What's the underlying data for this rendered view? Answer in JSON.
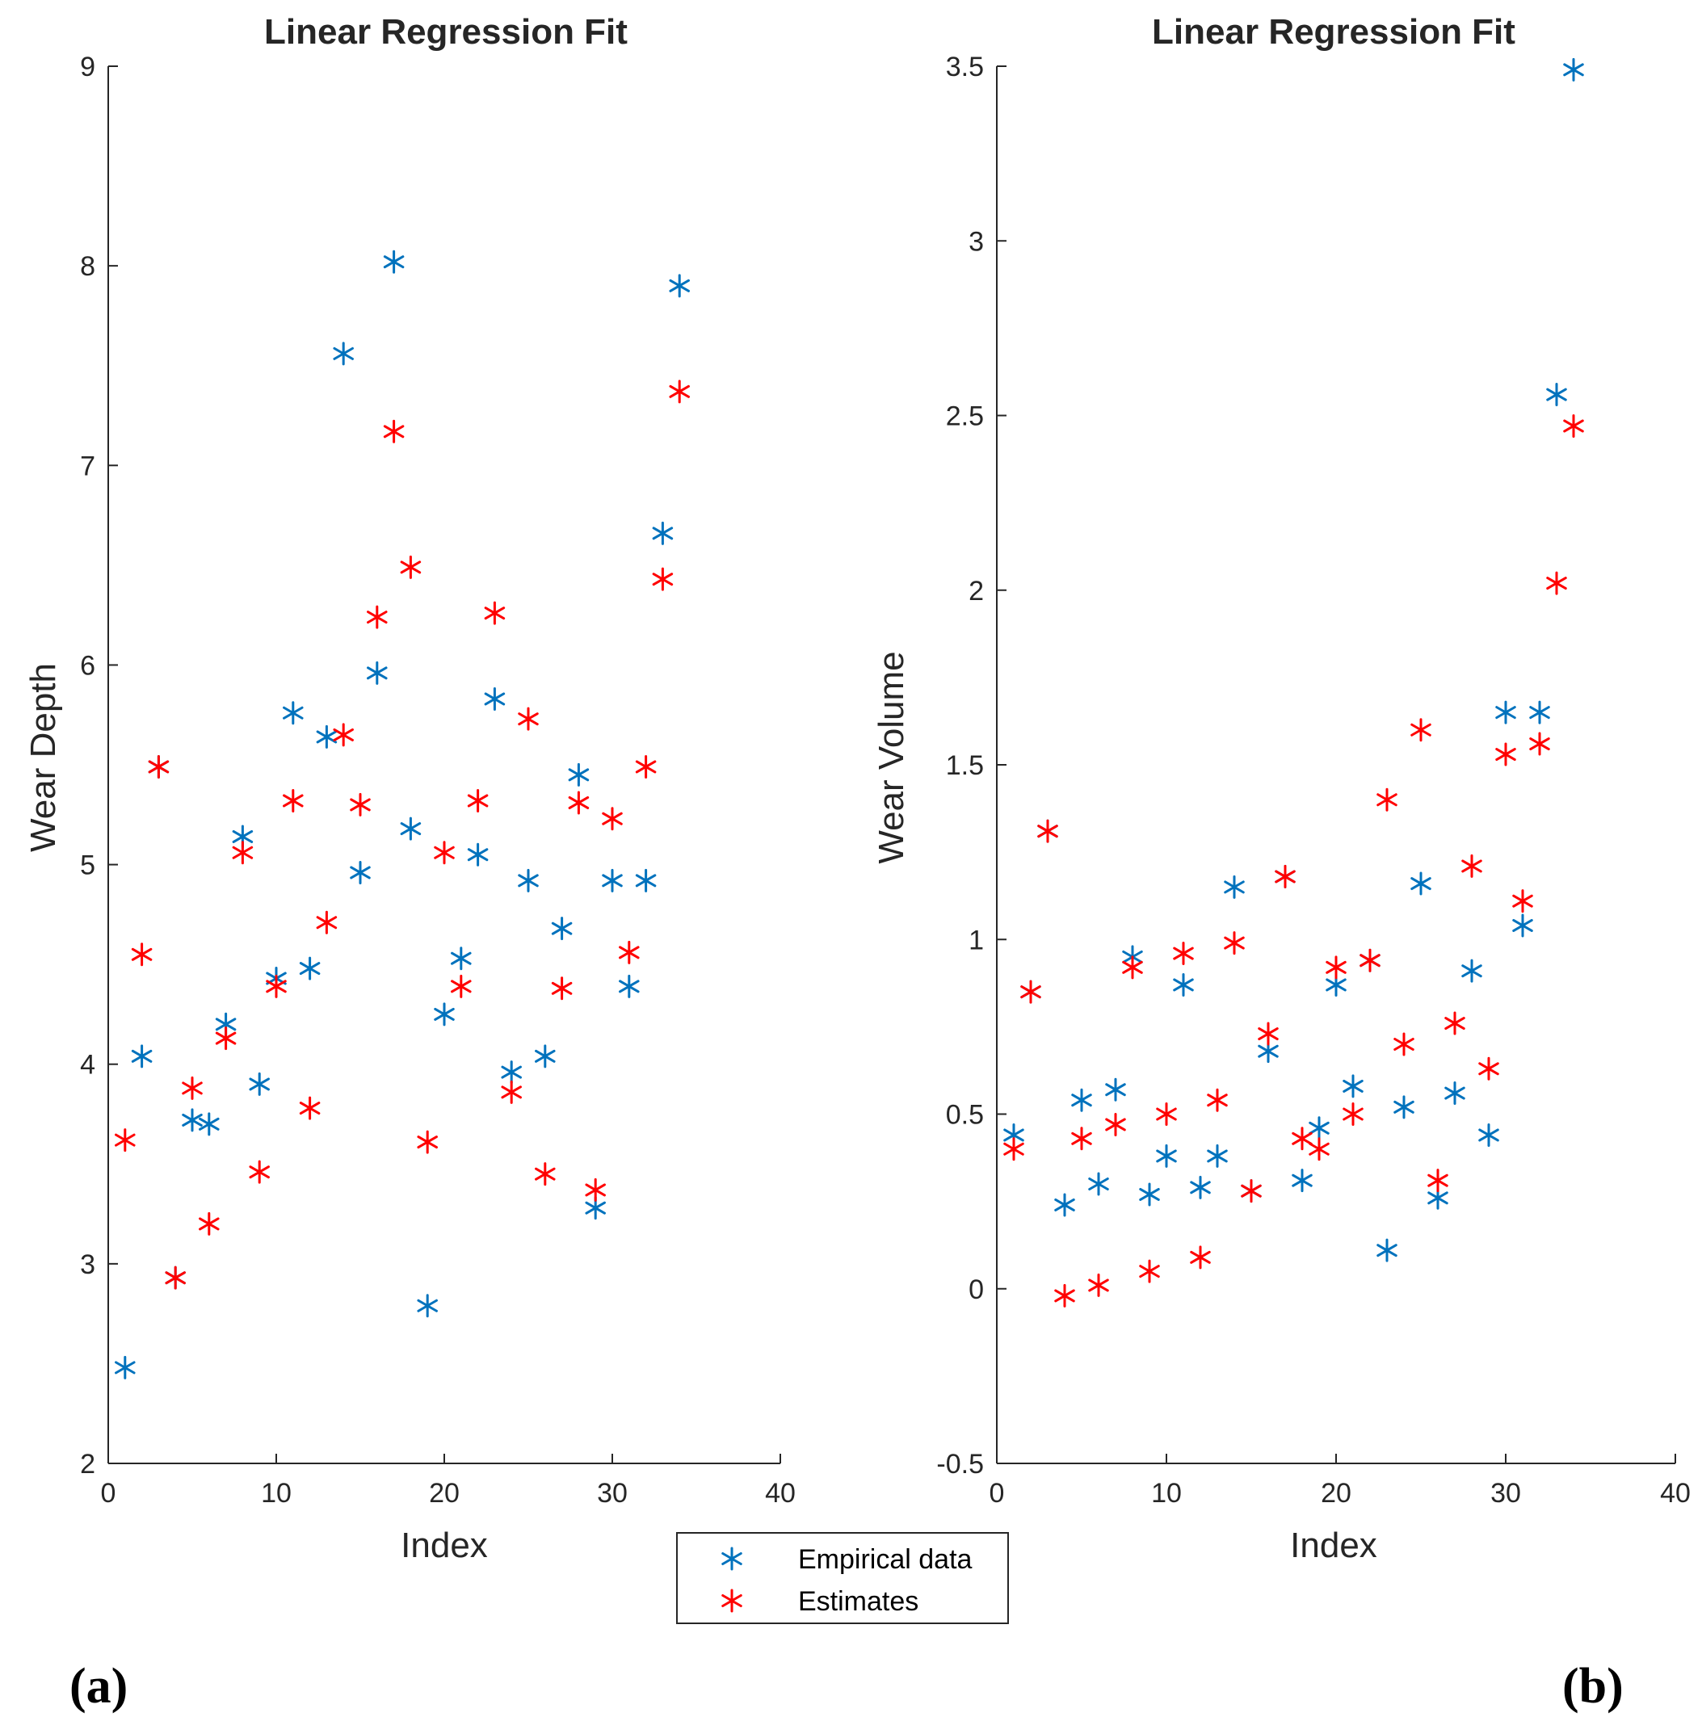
{
  "colors": {
    "empirical": "#0072bd",
    "estimates": "#ff0000",
    "axis": "#262626"
  },
  "legend": {
    "empirical_label": "Empirical data",
    "estimates_label": "Estimates",
    "empirical_icon": "asterisk-icon",
    "estimates_icon": "asterisk-icon"
  },
  "chart_data": [
    {
      "panel_label": "(a)",
      "type": "scatter",
      "title": "Linear Regression Fit",
      "xlabel": "Index",
      "ylabel": "Wear Depth",
      "xlim": [
        0,
        40
      ],
      "ylim": [
        2,
        9
      ],
      "xticks": [
        0,
        10,
        20,
        30,
        40
      ],
      "yticks": [
        2,
        3,
        4,
        5,
        6,
        7,
        8,
        9
      ],
      "ytick_labels": [
        "2",
        "3",
        "4",
        "5",
        "6",
        "7",
        "8",
        "9"
      ],
      "series": [
        {
          "name": "Empirical data",
          "color_key": "empirical",
          "x": [
            1,
            2,
            3,
            4,
            5,
            6,
            7,
            8,
            9,
            10,
            11,
            12,
            13,
            14,
            15,
            16,
            17,
            18,
            19,
            20,
            21,
            22,
            23,
            24,
            25,
            26,
            27,
            28,
            29,
            30,
            31,
            32,
            33,
            34
          ],
          "y": [
            2.48,
            4.04,
            5.49,
            2.93,
            3.72,
            3.7,
            4.2,
            5.14,
            3.9,
            4.43,
            5.76,
            4.48,
            5.64,
            7.56,
            4.96,
            5.96,
            8.02,
            5.18,
            2.79,
            4.25,
            4.53,
            5.05,
            5.83,
            3.96,
            4.92,
            4.04,
            4.68,
            5.45,
            3.28,
            4.92,
            4.39,
            4.92,
            6.66,
            7.9
          ]
        },
        {
          "name": "Estimates",
          "color_key": "estimates",
          "x": [
            1,
            2,
            3,
            4,
            5,
            6,
            7,
            8,
            9,
            10,
            11,
            12,
            13,
            14,
            15,
            16,
            17,
            18,
            19,
            20,
            21,
            22,
            23,
            24,
            25,
            26,
            27,
            28,
            29,
            30,
            31,
            32,
            33,
            34
          ],
          "y": [
            3.62,
            4.55,
            5.49,
            2.93,
            3.88,
            3.2,
            4.13,
            5.06,
            3.46,
            4.39,
            5.32,
            3.78,
            4.71,
            5.65,
            5.3,
            6.24,
            7.17,
            6.49,
            3.61,
            5.06,
            4.39,
            5.32,
            6.26,
            3.86,
            5.73,
            3.45,
            4.38,
            5.31,
            3.37,
            5.23,
            4.56,
            5.49,
            6.43,
            7.37
          ]
        }
      ]
    },
    {
      "panel_label": "(b)",
      "type": "scatter",
      "title": "Linear Regression Fit",
      "xlabel": "Index",
      "ylabel": "Wear Volume",
      "xlim": [
        0,
        40
      ],
      "ylim": [
        -0.5,
        3.5
      ],
      "xticks": [
        0,
        10,
        20,
        30,
        40
      ],
      "yticks": [
        -0.5,
        0,
        0.5,
        1,
        1.5,
        2,
        2.5,
        3,
        3.5
      ],
      "ytick_labels": [
        "-0.5",
        "0",
        "0.5",
        "1",
        "1.5",
        "2",
        "2.5",
        "3",
        "3.5"
      ],
      "series": [
        {
          "name": "Empirical data",
          "color_key": "empirical",
          "x": [
            1,
            2,
            3,
            4,
            5,
            6,
            7,
            8,
            9,
            10,
            11,
            12,
            13,
            14,
            15,
            16,
            17,
            18,
            19,
            20,
            21,
            22,
            23,
            24,
            25,
            26,
            27,
            28,
            29,
            30,
            31,
            32,
            33,
            34
          ],
          "y": [
            0.44,
            0.85,
            1.31,
            0.24,
            0.54,
            0.3,
            0.57,
            0.95,
            0.27,
            0.38,
            0.87,
            0.29,
            0.38,
            1.15,
            0.28,
            0.68,
            1.18,
            0.31,
            0.46,
            0.87,
            0.58,
            0.94,
            0.11,
            0.52,
            1.16,
            0.26,
            0.56,
            0.91,
            0.44,
            1.65,
            1.04,
            1.65,
            2.56,
            3.49
          ]
        },
        {
          "name": "Estimates",
          "color_key": "estimates",
          "x": [
            1,
            2,
            3,
            4,
            5,
            6,
            7,
            8,
            9,
            10,
            11,
            12,
            13,
            14,
            15,
            16,
            17,
            18,
            19,
            20,
            21,
            22,
            23,
            24,
            25,
            26,
            27,
            28,
            29,
            30,
            31,
            32,
            33,
            34
          ],
          "y": [
            0.4,
            0.85,
            1.31,
            -0.02,
            0.43,
            0.01,
            0.47,
            0.92,
            0.05,
            0.5,
            0.96,
            0.09,
            0.54,
            0.99,
            0.28,
            0.73,
            1.18,
            0.43,
            0.4,
            0.92,
            0.5,
            0.94,
            1.4,
            0.7,
            1.6,
            0.31,
            0.76,
            1.21,
            0.63,
            1.53,
            1.11,
            1.56,
            2.02,
            2.47
          ]
        }
      ]
    }
  ]
}
